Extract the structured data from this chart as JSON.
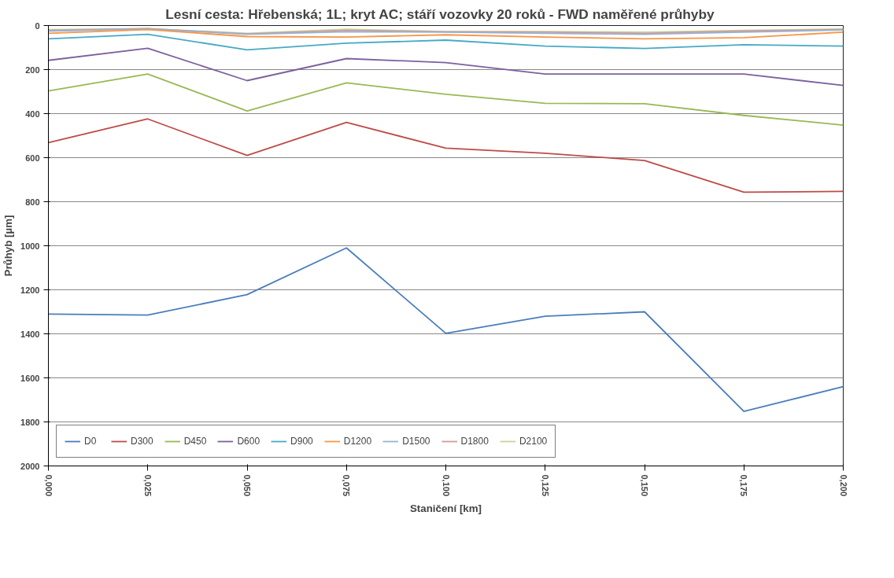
{
  "chart_data": {
    "type": "line",
    "title": "Lesní cesta: Hřebenská;  1L;  kryt AC;  stáří vozovky 20 roků - FWD naměřené průhyby",
    "xlabel": "Staničení [km]",
    "ylabel": "Průhyb [µm]",
    "x": [
      0,
      0.025,
      0.05,
      0.075,
      0.1,
      0.125,
      0.15,
      0.175,
      0.2
    ],
    "xlim": [
      0,
      0.2
    ],
    "xticks": [
      {
        "value": 0,
        "label": "0,000"
      },
      {
        "value": 0.025,
        "label": "0,025"
      },
      {
        "value": 0.05,
        "label": "0,050"
      },
      {
        "value": 0.075,
        "label": "0,075"
      },
      {
        "value": 0.1,
        "label": "0,100"
      },
      {
        "value": 0.125,
        "label": "0,125"
      },
      {
        "value": 0.15,
        "label": "0,150"
      },
      {
        "value": 0.175,
        "label": "0,175"
      },
      {
        "value": 0.2,
        "label": "0,200"
      }
    ],
    "ylim": [
      2000,
      0
    ],
    "yticks": [
      0,
      200,
      400,
      600,
      800,
      1000,
      1200,
      1400,
      1600,
      1800,
      2000
    ],
    "grid": "y",
    "legend": "bottom left",
    "marker": "none",
    "line_style": "solid",
    "series": [
      {
        "name": "D0",
        "color": "#4a7ebb",
        "values": [
          1310,
          1315,
          1222,
          1010,
          1398,
          1320,
          1300,
          1752,
          1640
        ]
      },
      {
        "name": "D300",
        "color": "#be4b48",
        "values": [
          532,
          424,
          590,
          440,
          557,
          580,
          613,
          757,
          753
        ]
      },
      {
        "name": "D450",
        "color": "#98b954",
        "values": [
          297,
          220,
          388,
          260,
          312,
          353,
          355,
          408,
          452
        ]
      },
      {
        "name": "D600",
        "color": "#7d60a0",
        "values": [
          158,
          103,
          250,
          150,
          168,
          220,
          220,
          220,
          272
        ]
      },
      {
        "name": "D900",
        "color": "#46aac5",
        "values": [
          60,
          40,
          110,
          80,
          66,
          93,
          104,
          87,
          93
        ]
      },
      {
        "name": "D1200",
        "color": "#f79646",
        "values": [
          35,
          18,
          50,
          52,
          42,
          52,
          60,
          55,
          30
        ]
      },
      {
        "name": "D1500",
        "color": "#95b3d7",
        "values": [
          25,
          15,
          40,
          28,
          30,
          35,
          40,
          30,
          20
        ]
      },
      {
        "name": "D1800",
        "color": "#d99694",
        "values": [
          22,
          14,
          38,
          22,
          28,
          30,
          35,
          25,
          18
        ]
      },
      {
        "name": "D2100",
        "color": "#c3d69b",
        "values": [
          18,
          14,
          35,
          17,
          27,
          27,
          30,
          22,
          15
        ]
      }
    ]
  }
}
